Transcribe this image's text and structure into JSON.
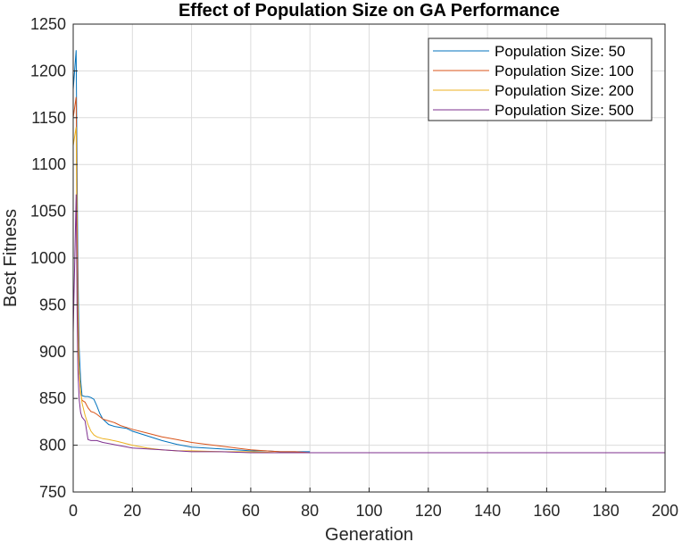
{
  "chart_data": {
    "type": "line",
    "title": "Effect of Population Size on GA Performance",
    "xlabel": "Generation",
    "ylabel": "Best Fitness",
    "xlim": [
      0,
      200
    ],
    "ylim": [
      750,
      1250
    ],
    "xticks": [
      0,
      20,
      40,
      60,
      80,
      100,
      120,
      140,
      160,
      180,
      200
    ],
    "yticks": [
      750,
      800,
      850,
      900,
      950,
      1000,
      1050,
      1100,
      1150,
      1200,
      1250
    ],
    "grid": true,
    "legend_position": "top-right",
    "series": [
      {
        "name": "Population Size: 50",
        "color": "#0072BD",
        "x": [
          0,
          1,
          1.3,
          1.6,
          2,
          2.5,
          3,
          4,
          5,
          6,
          7,
          8,
          9,
          10,
          12,
          14,
          16,
          18,
          20,
          25,
          30,
          35,
          40,
          45,
          50,
          55,
          60,
          65,
          70,
          75,
          80
        ],
        "y": [
          1180,
          1222,
          1100,
          990,
          905,
          870,
          853,
          852,
          852,
          851,
          849,
          842,
          834,
          828,
          822,
          820,
          819,
          818,
          815,
          810,
          805,
          801,
          798,
          797,
          796,
          795,
          794,
          794,
          793,
          793,
          793
        ]
      },
      {
        "name": "Population Size: 100",
        "color": "#D95319",
        "x": [
          0,
          1,
          1.3,
          1.6,
          2,
          2.5,
          3,
          4,
          5,
          6,
          7,
          8,
          10,
          12,
          14,
          16,
          18,
          20,
          25,
          30,
          35,
          40,
          45,
          50,
          55,
          60,
          65,
          70,
          75,
          80
        ],
        "y": [
          1150,
          1172,
          1050,
          950,
          880,
          855,
          848,
          846,
          840,
          836,
          835,
          833,
          828,
          826,
          824,
          821,
          819,
          817,
          813,
          809,
          806,
          803,
          801,
          799,
          797,
          795,
          794,
          793,
          793,
          792
        ]
      },
      {
        "name": "Population Size: 200",
        "color": "#EDB120",
        "x": [
          0,
          1,
          1.3,
          1.6,
          2,
          2.5,
          3,
          4,
          5,
          6,
          7,
          8,
          10,
          12,
          15,
          20,
          25,
          30,
          35,
          40,
          50,
          60,
          70,
          80
        ],
        "y": [
          1120,
          1140,
          1000,
          920,
          880,
          858,
          845,
          832,
          822,
          815,
          811,
          809,
          807,
          806,
          804,
          800,
          797,
          795,
          794,
          794,
          793,
          793,
          792,
          792
        ]
      },
      {
        "name": "Population Size: 500",
        "color": "#7E2F8E",
        "x": [
          0,
          1,
          1.3,
          1.6,
          2,
          2.5,
          3,
          4,
          5,
          6,
          8,
          10,
          15,
          20,
          25,
          30,
          35,
          40,
          50,
          60,
          70,
          80
        ],
        "y": [
          920,
          1068,
          950,
          880,
          850,
          835,
          830,
          826,
          806,
          805,
          805,
          803,
          800,
          797,
          796,
          795,
          794,
          793,
          793,
          792,
          792,
          792
        ]
      }
    ],
    "tail": {
      "from": 80,
      "to": 200,
      "value": 792
    }
  }
}
